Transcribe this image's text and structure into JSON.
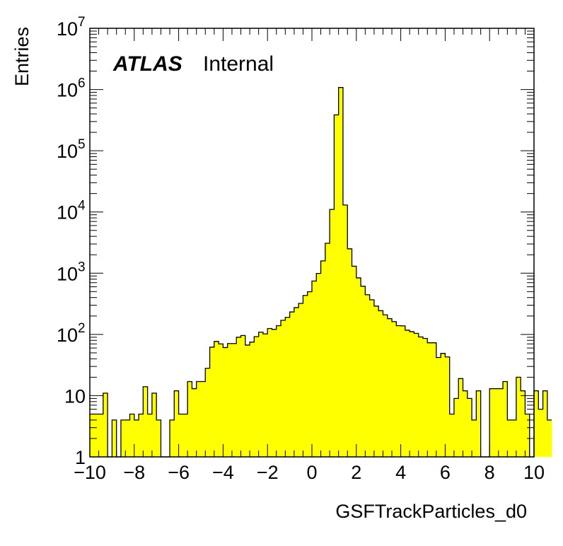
{
  "chart_data": {
    "type": "bar",
    "xlabel": "GSFTrackParticles_d0",
    "ylabel": "Entries",
    "xlim": [
      -10,
      10
    ],
    "ylim": [
      1,
      10000000
    ],
    "y_scale": "log",
    "fill_color": "#ffff00",
    "grid": false,
    "x_ticks": [
      -10,
      -8,
      -6,
      -4,
      -2,
      0,
      2,
      4,
      6,
      8,
      10
    ],
    "x_tick_labels": [
      "−10",
      "−8",
      "−6",
      "−4",
      "−2",
      "0",
      "2",
      "4",
      "6",
      "8",
      "10"
    ],
    "y_tick_labels": [
      {
        "value": 1,
        "base": "1",
        "exp": ""
      },
      {
        "value": 10,
        "base": "10",
        "exp": ""
      },
      {
        "value": 100,
        "base": "10",
        "exp": "2"
      },
      {
        "value": 1000,
        "base": "10",
        "exp": "3"
      },
      {
        "value": 10000,
        "base": "10",
        "exp": "4"
      },
      {
        "value": 100000,
        "base": "10",
        "exp": "5"
      },
      {
        "value": 1000000,
        "base": "10",
        "exp": "6"
      },
      {
        "value": 10000000,
        "base": "10",
        "exp": "7"
      }
    ],
    "bin_edges_start": -10,
    "bin_width": 0.2,
    "values": [
      5,
      5,
      5,
      11,
      0,
      4,
      0,
      4,
      4,
      5,
      4,
      5,
      14,
      5,
      11,
      4,
      0,
      0,
      4,
      12,
      5,
      5,
      17,
      13,
      17,
      17,
      28,
      62,
      77,
      70,
      61,
      71,
      71,
      90,
      96,
      67,
      75,
      92,
      109,
      102,
      125,
      121,
      139,
      170,
      190,
      233,
      274,
      321,
      433,
      498,
      744,
      991,
      1589,
      3080,
      11000,
      385000,
      1080000,
      13000,
      2500,
      1300,
      838,
      613,
      445,
      368,
      290,
      244,
      209,
      181,
      162,
      139,
      138,
      117,
      111,
      104,
      91,
      86,
      73,
      73,
      42,
      49,
      43,
      5,
      9,
      19,
      12,
      9,
      4,
      12,
      0,
      0,
      13,
      13,
      13,
      17,
      4,
      4,
      20,
      12,
      5,
      0,
      12,
      6,
      12,
      4
    ]
  },
  "labels": {
    "atlas": "ATLAS",
    "internal": "Internal"
  }
}
